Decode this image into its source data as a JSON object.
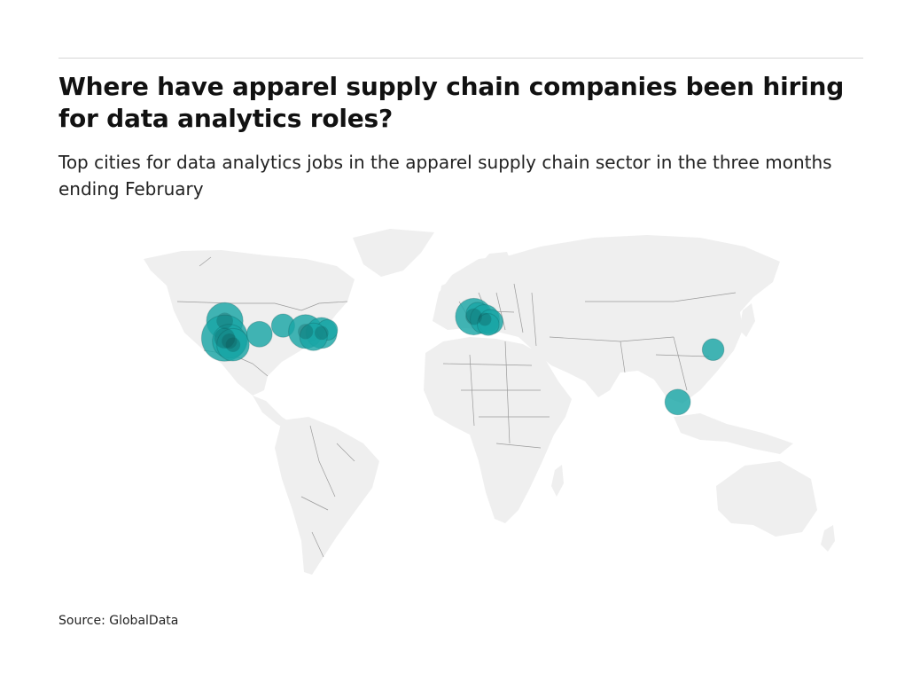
{
  "header": {
    "title": "Where have apparel supply chain companies been hiring for data analytics roles?",
    "subtitle": "Top cities for data analytics jobs in the apparel supply chain sector in the three months ending February"
  },
  "footer": {
    "source": "Source: GlobalData"
  },
  "colors": {
    "bubble": "#1aa6a6",
    "bubble_dark": "#0c4a4a",
    "land": "#efefef",
    "border": "#9a9a9a",
    "rule": "#d6d6d6"
  },
  "map_data": {
    "type": "world-bubble-map",
    "bubbles": [
      {
        "region": "US West Coast",
        "lat": 47.6,
        "lon": -122.3,
        "size": 0.55
      },
      {
        "region": "US West Coast",
        "lat": 37.8,
        "lon": -122.4,
        "size": 1.0
      },
      {
        "region": "US West Coast",
        "lat": 36.0,
        "lon": -120.0,
        "size": 0.45
      },
      {
        "region": "US West Coast",
        "lat": 34.0,
        "lon": -118.2,
        "size": 0.4
      },
      {
        "region": "US Mountain",
        "lat": 40.0,
        "lon": -105.0,
        "size": 0.2
      },
      {
        "region": "US Midwest",
        "lat": 44.9,
        "lon": -93.2,
        "size": 0.15
      },
      {
        "region": "US East",
        "lat": 41.5,
        "lon": -82.0,
        "size": 0.45
      },
      {
        "region": "US East",
        "lat": 40.7,
        "lon": -74.0,
        "size": 0.35
      },
      {
        "region": "US East",
        "lat": 42.4,
        "lon": -71.1,
        "size": 0.1
      },
      {
        "region": "US East",
        "lat": 38.5,
        "lon": -78.0,
        "size": 0.25
      },
      {
        "region": "Western Europe",
        "lat": 50.0,
        "lon": 2.0,
        "size": 0.55
      },
      {
        "region": "Western Europe",
        "lat": 51.5,
        "lon": 4.0,
        "size": 0.15
      },
      {
        "region": "Western Europe",
        "lat": 48.5,
        "lon": 7.5,
        "size": 0.3
      },
      {
        "region": "Western Europe",
        "lat": 47.0,
        "lon": 10.5,
        "size": 0.18
      },
      {
        "region": "Western Europe",
        "lat": 45.5,
        "lon": 9.2,
        "size": 0.12
      },
      {
        "region": "East Asia",
        "lat": 31.2,
        "lon": 121.5,
        "size": 0.12
      },
      {
        "region": "Southeast Asia",
        "lat": 1.35,
        "lon": 103.8,
        "size": 0.2
      }
    ]
  }
}
